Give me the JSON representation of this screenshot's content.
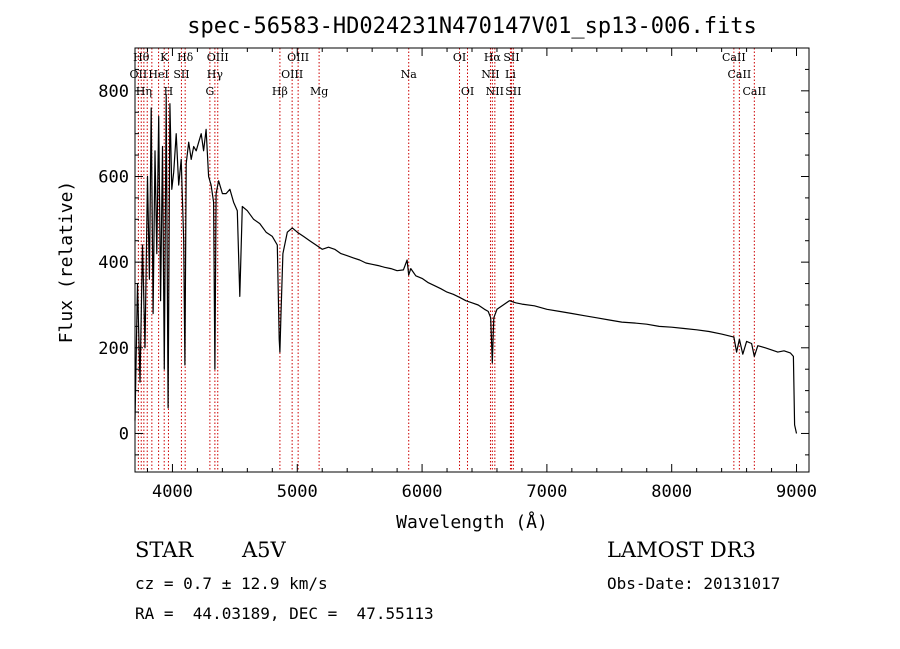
{
  "chart_data": {
    "type": "line",
    "title": "spec-56583-HD024231N470147V01_sp13-006.fits",
    "xlabel": "Wavelength (Å)",
    "ylabel": "Flux (relative)",
    "xlim": [
      3700,
      9100
    ],
    "ylim": [
      -90,
      900
    ],
    "x_ticks": [
      4000,
      5000,
      6000,
      7000,
      8000,
      9000
    ],
    "y_ticks": [
      0,
      200,
      400,
      600,
      800
    ],
    "grid": false,
    "line_color": "#000000",
    "marker_color": "#cc0000",
    "series": [
      {
        "values_x": [
          3700,
          3720,
          3740,
          3760,
          3780,
          3800,
          3815,
          3830,
          3845,
          3860,
          3875,
          3890,
          3905,
          3920,
          3935,
          3950,
          3965,
          3980,
          3995,
          4010,
          4030,
          4050,
          4070,
          4090,
          4100,
          4110,
          4130,
          4150,
          4170,
          4190,
          4210,
          4230,
          4250,
          4270,
          4290,
          4310,
          4330,
          4340,
          4350,
          4370,
          4400,
          4430,
          4460,
          4490,
          4520,
          4540,
          4560,
          4600,
          4650,
          4700,
          4750,
          4800,
          4840,
          4855,
          4861,
          4870,
          4885,
          4920,
          4960,
          5000,
          5050,
          5100,
          5150,
          5200,
          5250,
          5300,
          5350,
          5400,
          5450,
          5500,
          5550,
          5600,
          5650,
          5700,
          5750,
          5800,
          5850,
          5880,
          5893,
          5910,
          5950,
          6000,
          6050,
          6100,
          6150,
          6200,
          6250,
          6300,
          6350,
          6400,
          6450,
          6500,
          6530,
          6550,
          6563,
          6575,
          6600,
          6650,
          6700,
          6750,
          6800,
          6900,
          7000,
          7100,
          7200,
          7300,
          7400,
          7500,
          7600,
          7700,
          7800,
          7900,
          8000,
          8100,
          8200,
          8300,
          8400,
          8498,
          8520,
          8542,
          8570,
          8600,
          8640,
          8662,
          8690,
          8750,
          8800,
          8850,
          8900,
          8950,
          8975,
          8985,
          9000
        ],
        "values_y": [
          30,
          350,
          120,
          440,
          200,
          600,
          360,
          760,
          280,
          660,
          420,
          740,
          310,
          670,
          150,
          790,
          60,
          770,
          570,
          610,
          700,
          580,
          640,
          450,
          160,
          630,
          680,
          640,
          670,
          660,
          680,
          700,
          660,
          710,
          600,
          580,
          540,
          150,
          560,
          590,
          560,
          560,
          570,
          540,
          520,
          320,
          530,
          520,
          500,
          490,
          470,
          460,
          440,
          220,
          190,
          280,
          420,
          470,
          480,
          470,
          460,
          450,
          440,
          430,
          435,
          430,
          420,
          415,
          410,
          405,
          398,
          395,
          392,
          388,
          385,
          380,
          382,
          405,
          370,
          385,
          368,
          362,
          352,
          345,
          338,
          330,
          325,
          318,
          310,
          305,
          300,
          290,
          285,
          270,
          165,
          270,
          290,
          300,
          310,
          305,
          302,
          298,
          290,
          285,
          280,
          275,
          270,
          265,
          260,
          258,
          255,
          250,
          248,
          245,
          242,
          238,
          232,
          225,
          190,
          220,
          185,
          215,
          210,
          180,
          205,
          200,
          195,
          190,
          193,
          188,
          180,
          20,
          0
        ]
      }
    ],
    "line_markers": [
      {
        "wavelength": 3727,
        "label": "OII",
        "row": 2
      },
      {
        "wavelength": 3750,
        "label": "Hθ",
        "row": 1
      },
      {
        "wavelength": 3771,
        "label": "Hη",
        "row": 3
      },
      {
        "wavelength": 3798,
        "label": "",
        "row": 0
      },
      {
        "wavelength": 3835,
        "label": "",
        "row": 0
      },
      {
        "wavelength": 3889,
        "label": "HeI",
        "row": 2
      },
      {
        "wavelength": 3934,
        "label": "K",
        "row": 1
      },
      {
        "wavelength": 3968,
        "label": "H",
        "row": 3
      },
      {
        "wavelength": 4072,
        "label": "SII",
        "row": 2
      },
      {
        "wavelength": 4102,
        "label": "Hδ",
        "row": 1
      },
      {
        "wavelength": 4300,
        "label": "G",
        "row": 3
      },
      {
        "wavelength": 4340,
        "label": "Hγ",
        "row": 2
      },
      {
        "wavelength": 4363,
        "label": "OIII",
        "row": 1
      },
      {
        "wavelength": 4861,
        "label": "Hβ",
        "row": 3
      },
      {
        "wavelength": 4959,
        "label": "OIII",
        "row": 2
      },
      {
        "wavelength": 5007,
        "label": "OIII",
        "row": 1
      },
      {
        "wavelength": 5175,
        "label": "Mg",
        "row": 3
      },
      {
        "wavelength": 5893,
        "label": "Na",
        "row": 2
      },
      {
        "wavelength": 6300,
        "label": "OI",
        "row": 1
      },
      {
        "wavelength": 6364,
        "label": "OI",
        "row": 3
      },
      {
        "wavelength": 6548,
        "label": "NII",
        "row": 2
      },
      {
        "wavelength": 6563,
        "label": "Hα",
        "row": 1
      },
      {
        "wavelength": 6583,
        "label": "NII",
        "row": 3
      },
      {
        "wavelength": 6708,
        "label": "Li",
        "row": 2
      },
      {
        "wavelength": 6716,
        "label": "SII",
        "row": 1
      },
      {
        "wavelength": 6731,
        "label": "SII",
        "row": 3
      },
      {
        "wavelength": 8498,
        "label": "CaII",
        "row": 1
      },
      {
        "wavelength": 8542,
        "label": "CaII",
        "row": 2
      },
      {
        "wavelength": 8662,
        "label": "CaII",
        "row": 3
      }
    ]
  },
  "info": {
    "object_class": "STAR",
    "subclass": "A5V",
    "survey": "LAMOST DR3",
    "cz": "cz = 0.7 ± 12.9 km/s",
    "obs_date": "Obs-Date: 20131017",
    "coords": "RA =  44.03189, DEC =  47.55113"
  }
}
